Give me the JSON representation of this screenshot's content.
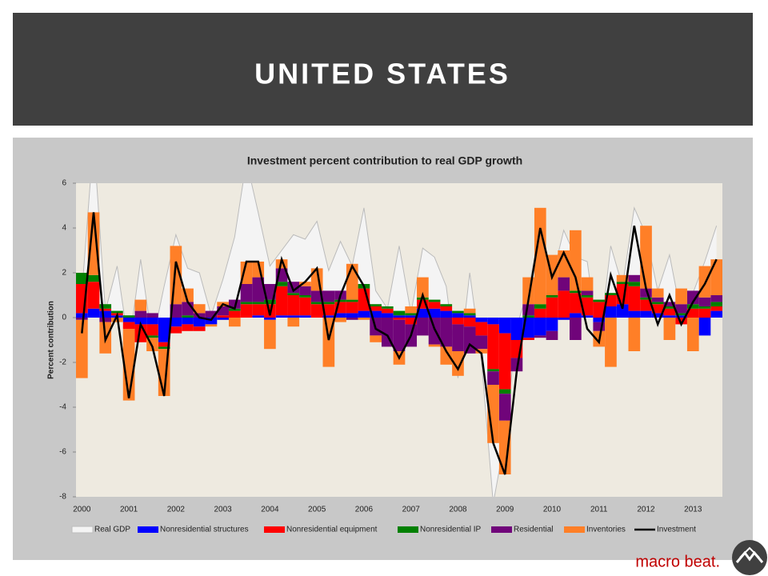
{
  "header": {
    "title": "UNITED STATES"
  },
  "footer": {
    "brand": "macro beat."
  },
  "chart_data": {
    "type": "bar",
    "title": "Investment percent contribution to real GDP growth",
    "y_label": "Percent contribution",
    "categories": [
      "2000",
      null,
      null,
      null,
      "2001",
      null,
      null,
      null,
      "2002",
      null,
      null,
      null,
      "2003",
      null,
      null,
      null,
      "2004",
      null,
      null,
      null,
      "2005",
      null,
      null,
      null,
      "2006",
      null,
      null,
      null,
      "2007",
      null,
      null,
      null,
      "2008",
      null,
      null,
      null,
      "2009",
      null,
      null,
      null,
      "2010",
      null,
      null,
      null,
      "2011",
      null,
      null,
      null,
      "2012",
      null,
      null,
      null,
      "2013",
      null,
      null
    ],
    "ylim": [
      -8,
      6
    ],
    "yticks": [
      -8,
      -6,
      -4,
      -2,
      0,
      2,
      4,
      6
    ],
    "series": [
      {
        "name": "Real GDP",
        "type": "area",
        "color": "#f4f4f4",
        "values": [
          1.1,
          8.0,
          0.3,
          2.3,
          -1.3,
          2.6,
          -1.1,
          1.4,
          3.7,
          2.2,
          2.0,
          0.1,
          1.7,
          3.6,
          7.0,
          4.7,
          2.3,
          3.0,
          3.7,
          3.5,
          4.3,
          2.1,
          3.4,
          2.3,
          4.9,
          1.2,
          0.4,
          3.2,
          0.2,
          3.1,
          2.7,
          1.4,
          -2.7,
          2.0,
          -1.9,
          -8.3,
          -5.4,
          -0.4,
          1.3,
          3.9,
          1.7,
          3.9,
          2.7,
          2.5,
          -1.3,
          3.2,
          1.4,
          4.9,
          3.7,
          1.2,
          2.8,
          0.1,
          1.1,
          2.5,
          4.1
        ]
      },
      {
        "name": "Nonresidential structures",
        "type": "stack",
        "color": "#0000ff",
        "values": [
          0.2,
          0.4,
          0.3,
          0.1,
          -0.2,
          -0.3,
          -0.3,
          -1.1,
          -0.4,
          -0.3,
          -0.4,
          -0.3,
          -0.1,
          0,
          0,
          0.1,
          -0.1,
          0.1,
          0.1,
          0.1,
          0,
          0.1,
          0.2,
          0.2,
          0.3,
          0.3,
          0.2,
          0.1,
          0.1,
          0.4,
          0.4,
          0.3,
          0.2,
          0.1,
          -0.2,
          -0.3,
          -0.7,
          -1.0,
          -0.9,
          -0.8,
          -0.6,
          -0.1,
          0.2,
          0.1,
          -0.2,
          0.5,
          0.6,
          0.3,
          0.3,
          0.2,
          0.1,
          0.1,
          0,
          -0.8,
          0.3
        ]
      },
      {
        "name": "Nonresidential equipment",
        "type": "stack",
        "color": "#ff0000",
        "values": [
          1.3,
          1.2,
          0.1,
          0.1,
          -0.3,
          -0.8,
          -0.5,
          -0.2,
          -0.3,
          -0.3,
          -0.2,
          0,
          0.1,
          0.3,
          0.6,
          0.5,
          0.6,
          1.3,
          0.9,
          0.8,
          0.6,
          0.5,
          0.5,
          0.5,
          1.0,
          0.2,
          0.2,
          -0.1,
          -0.3,
          0.4,
          0.3,
          0.2,
          -0.3,
          -0.4,
          -0.6,
          -2.0,
          -2.5,
          -0.8,
          -0.1,
          0.4,
          0.9,
          1.2,
          0.9,
          0.8,
          0.7,
          0.5,
          0.9,
          1.1,
          0.5,
          0.4,
          0.3,
          -0.3,
          0.4,
          0.4,
          0.2
        ]
      },
      {
        "name": "Nonresidential IP",
        "type": "stack",
        "color": "#008000",
        "values": [
          0.5,
          0.3,
          0.2,
          0.1,
          0.1,
          0,
          -0.1,
          -0.1,
          0,
          0.1,
          0,
          0,
          0,
          0.1,
          0.1,
          0.1,
          0.2,
          0.2,
          0.1,
          0.1,
          0.1,
          0.1,
          0.1,
          0.1,
          0.2,
          0.1,
          0.1,
          0.2,
          0.1,
          0.1,
          0.1,
          0.1,
          0.1,
          0.1,
          0,
          -0.1,
          -0.2,
          0,
          0.1,
          0.2,
          0.1,
          0,
          0.1,
          0.1,
          0.1,
          0.1,
          0.1,
          0.2,
          0.1,
          0.1,
          0.1,
          0.1,
          0.2,
          0.1,
          0.2
        ]
      },
      {
        "name": "Residential",
        "type": "stack",
        "color": "#70047a",
        "values": [
          -0.1,
          0,
          -0.2,
          0,
          0,
          0.3,
          0.2,
          0,
          0.6,
          0.6,
          0.2,
          0.3,
          0.4,
          0.4,
          0.8,
          1.1,
          0.7,
          0.6,
          0.5,
          0.4,
          0.5,
          0.5,
          0.4,
          -0.1,
          0,
          -0.8,
          -1.3,
          -1.4,
          -1.0,
          -0.8,
          -1.2,
          -1.3,
          -1.2,
          -1.2,
          -0.6,
          -0.6,
          -1.2,
          -0.6,
          0.5,
          -0.1,
          -0.4,
          0.6,
          -1.0,
          0.2,
          -0.4,
          0,
          0,
          0.3,
          0.4,
          0.2,
          0.2,
          0.4,
          0.6,
          0.4,
          0.3
        ]
      },
      {
        "name": "Inventories",
        "type": "stack",
        "color": "#ff7f27",
        "values": [
          -2.6,
          2.8,
          -1.4,
          -0.2,
          -3.2,
          0.5,
          -0.6,
          -2.1,
          2.6,
          0.6,
          0.4,
          -0.1,
          0.2,
          -0.4,
          1.0,
          0.7,
          -1.3,
          0.4,
          -0.4,
          0.2,
          1.0,
          -2.2,
          -0.2,
          1.6,
          -0.1,
          -0.3,
          0,
          -0.6,
          0.3,
          0.9,
          -0.1,
          -0.8,
          -1.1,
          0.2,
          -0.2,
          -2.6,
          -2.4,
          0,
          1.2,
          4.3,
          1.8,
          1.2,
          2.7,
          0.6,
          -0.7,
          -2.2,
          0.3,
          -1.5,
          2.8,
          0.4,
          -1.0,
          0.7,
          -1.5,
          1.4,
          1.6
        ]
      },
      {
        "name": "Investment",
        "type": "line",
        "color": "#000000",
        "values": [
          -0.7,
          4.7,
          -1.0,
          0.1,
          -3.6,
          -0.3,
          -1.3,
          -3.5,
          2.5,
          0.7,
          0,
          -0.1,
          0.6,
          0.4,
          2.5,
          2.5,
          0.1,
          2.6,
          1.2,
          1.6,
          2.2,
          -1.0,
          1.0,
          2.3,
          1.4,
          -0.5,
          -0.8,
          -1.8,
          -0.8,
          1.0,
          -0.5,
          -1.5,
          -2.3,
          -1.2,
          -1.6,
          -5.6,
          -7.0,
          -2.4,
          0.8,
          4.0,
          1.8,
          2.9,
          1.8,
          -0.5,
          -1.1,
          1.9,
          0.4,
          4.1,
          1.3,
          -0.3,
          1.0,
          -0.3,
          0.7,
          1.5,
          2.6
        ]
      }
    ]
  }
}
